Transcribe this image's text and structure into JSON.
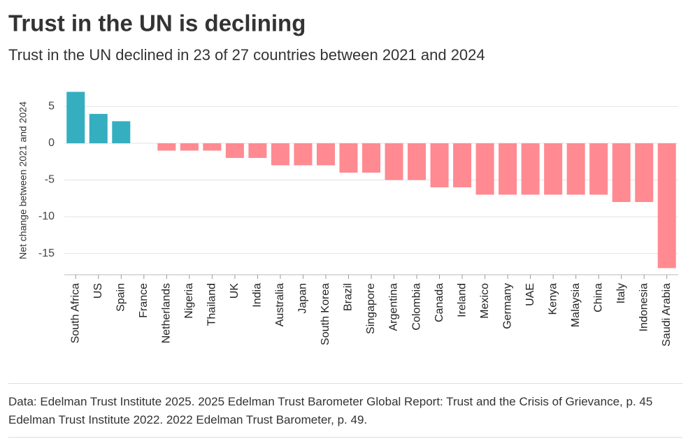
{
  "chart_data": {
    "type": "bar",
    "title": "Trust in the UN is declining",
    "subtitle": "Trust in the UN declined in 23 of 27 countries between 2021 and 2024",
    "y_label": "Net change between 2021 and 2024",
    "categories": [
      "South Africa",
      "US",
      "Spain",
      "France",
      "Netherlands",
      "Nigeria",
      "Thailand",
      "UK",
      "India",
      "Australia",
      "Japan",
      "South Korea",
      "Brazil",
      "Singapore",
      "Argentina",
      "Colombia",
      "Canada",
      "Ireland",
      "Mexico",
      "Germany",
      "UAE",
      "Kenya",
      "Malaysia",
      "China",
      "Italy",
      "Indonesia",
      "Saudi Arabia"
    ],
    "values": [
      7,
      4,
      3,
      0,
      -1,
      -1,
      -1,
      -2,
      -2,
      -3,
      -3,
      -3,
      -4,
      -4,
      -5,
      -5,
      -6,
      -6,
      -7,
      -7,
      -7,
      -7,
      -7,
      -7,
      -8,
      -8,
      -17
    ],
    "positive_color": "#35aec0",
    "negative_color": "#ff8a91",
    "ylim": [
      -17.9,
      7.8
    ],
    "yticks": [
      5,
      0,
      -5,
      -10,
      -15
    ],
    "grid": true,
    "source": "Data: Edelman Trust Institute 2025. 2025 Edelman Trust Barometer Global Report: Trust and the Crisis of Grievance, p. 45 Edelman Trust Institute 2022. 2022 Edelman Trust Barometer, p. 49."
  }
}
